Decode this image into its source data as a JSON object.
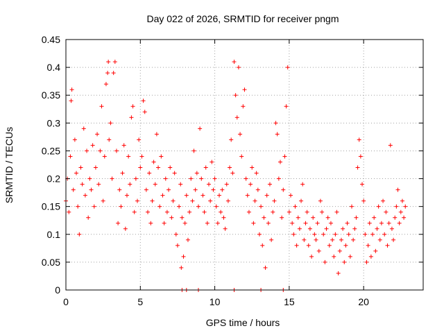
{
  "chart_data": {
    "type": "scatter",
    "title": "Day 022 of 2026, SRMTID for receiver pngm",
    "xlabel": "GPS time / hours",
    "ylabel": "SRMTID / TECUs",
    "xlim": [
      0,
      24
    ],
    "ylim": [
      0,
      0.45
    ],
    "xticks": [
      "0",
      "5",
      "10",
      "15",
      "20"
    ],
    "yticks": [
      "0",
      "0.05",
      "0.1",
      "0.15",
      "0.2",
      "0.25",
      "0.3",
      "0.35",
      "0.4",
      "0.45"
    ],
    "grid": true,
    "marker": "+",
    "color": "#ff0000",
    "series": [
      {
        "name": "SRMTID",
        "points": [
          [
            0.0,
            0.16
          ],
          [
            0.1,
            0.2
          ],
          [
            0.2,
            0.14
          ],
          [
            0.3,
            0.24
          ],
          [
            0.35,
            0.34
          ],
          [
            0.4,
            0.36
          ],
          [
            0.5,
            0.18
          ],
          [
            0.6,
            0.27
          ],
          [
            0.7,
            0.21
          ],
          [
            0.8,
            0.15
          ],
          [
            0.9,
            0.1
          ],
          [
            1.0,
            0.22
          ],
          [
            1.1,
            0.19
          ],
          [
            1.2,
            0.29
          ],
          [
            1.3,
            0.17
          ],
          [
            1.4,
            0.25
          ],
          [
            1.5,
            0.13
          ],
          [
            1.6,
            0.2
          ],
          [
            1.7,
            0.18
          ],
          [
            1.8,
            0.26
          ],
          [
            1.9,
            0.15
          ],
          [
            2.0,
            0.22
          ],
          [
            2.1,
            0.28
          ],
          [
            2.2,
            0.19
          ],
          [
            2.3,
            0.25
          ],
          [
            2.4,
            0.33
          ],
          [
            2.5,
            0.16
          ],
          [
            2.6,
            0.24
          ],
          [
            2.7,
            0.37
          ],
          [
            2.8,
            0.39
          ],
          [
            2.85,
            0.41
          ],
          [
            2.9,
            0.27
          ],
          [
            3.0,
            0.3
          ],
          [
            3.1,
            0.2
          ],
          [
            3.2,
            0.39
          ],
          [
            3.3,
            0.41
          ],
          [
            3.4,
            0.25
          ],
          [
            3.5,
            0.12
          ],
          [
            3.6,
            0.18
          ],
          [
            3.7,
            0.15
          ],
          [
            3.8,
            0.21
          ],
          [
            3.9,
            0.26
          ],
          [
            4.0,
            0.11
          ],
          [
            4.1,
            0.17
          ],
          [
            4.2,
            0.24
          ],
          [
            4.3,
            0.19
          ],
          [
            4.4,
            0.31
          ],
          [
            4.5,
            0.33
          ],
          [
            4.6,
            0.14
          ],
          [
            4.7,
            0.2
          ],
          [
            4.8,
            0.16
          ],
          [
            4.9,
            0.27
          ],
          [
            5.0,
            0.22
          ],
          [
            5.1,
            0.24
          ],
          [
            5.2,
            0.34
          ],
          [
            5.3,
            0.32
          ],
          [
            5.4,
            0.18
          ],
          [
            5.5,
            0.14
          ],
          [
            5.6,
            0.21
          ],
          [
            5.7,
            0.12
          ],
          [
            5.8,
            0.16
          ],
          [
            5.9,
            0.23
          ],
          [
            6.0,
            0.19
          ],
          [
            6.1,
            0.28
          ],
          [
            6.2,
            0.22
          ],
          [
            6.3,
            0.15
          ],
          [
            6.4,
            0.24
          ],
          [
            6.5,
            0.17
          ],
          [
            6.6,
            0.12
          ],
          [
            6.7,
            0.2
          ],
          [
            6.8,
            0.14
          ],
          [
            6.9,
            0.18
          ],
          [
            7.0,
            0.22
          ],
          [
            7.1,
            0.13
          ],
          [
            7.2,
            0.16
          ],
          [
            7.3,
            0.21
          ],
          [
            7.4,
            0.1
          ],
          [
            7.5,
            0.08
          ],
          [
            7.6,
            0.15
          ],
          [
            7.7,
            0.19
          ],
          [
            7.75,
            0.04
          ],
          [
            7.8,
            0.13
          ],
          [
            7.9,
            0.06
          ],
          [
            8.0,
            0.12
          ],
          [
            8.1,
            0.17
          ],
          [
            8.2,
            0.09
          ],
          [
            8.3,
            0.14
          ],
          [
            8.4,
            0.2
          ],
          [
            8.5,
            0.16
          ],
          [
            8.6,
            0.25
          ],
          [
            8.7,
            0.18
          ],
          [
            8.8,
            0.21
          ],
          [
            8.9,
            0.15
          ],
          [
            9.0,
            0.29
          ],
          [
            9.1,
            0.2
          ],
          [
            9.2,
            0.17
          ],
          [
            9.3,
            0.14
          ],
          [
            9.4,
            0.22
          ],
          [
            9.5,
            0.12
          ],
          [
            9.6,
            0.19
          ],
          [
            9.7,
            0.16
          ],
          [
            9.8,
            0.23
          ],
          [
            9.9,
            0.18
          ],
          [
            10.0,
            0.2
          ],
          [
            10.1,
            0.15
          ],
          [
            10.2,
            0.12
          ],
          [
            10.3,
            0.17
          ],
          [
            10.4,
            0.14
          ],
          [
            10.5,
            0.18
          ],
          [
            10.6,
            0.13
          ],
          [
            10.7,
            0.11
          ],
          [
            10.8,
            0.19
          ],
          [
            10.9,
            0.16
          ],
          [
            11.0,
            0.22
          ],
          [
            11.1,
            0.27
          ],
          [
            11.2,
            0.21
          ],
          [
            11.3,
            0.41
          ],
          [
            11.4,
            0.35
          ],
          [
            11.5,
            0.31
          ],
          [
            11.6,
            0.4
          ],
          [
            11.7,
            0.28
          ],
          [
            11.8,
            0.24
          ],
          [
            11.9,
            0.33
          ],
          [
            12.0,
            0.36
          ],
          [
            12.1,
            0.2
          ],
          [
            12.2,
            0.17
          ],
          [
            12.3,
            0.14
          ],
          [
            12.4,
            0.19
          ],
          [
            12.5,
            0.22
          ],
          [
            12.6,
            0.12
          ],
          [
            12.7,
            0.16
          ],
          [
            12.8,
            0.21
          ],
          [
            12.9,
            0.18
          ],
          [
            13.0,
            0.1
          ],
          [
            13.1,
            0.15
          ],
          [
            13.2,
            0.08
          ],
          [
            13.3,
            0.13
          ],
          [
            13.4,
            0.04
          ],
          [
            13.5,
            0.17
          ],
          [
            13.6,
            0.12
          ],
          [
            13.7,
            0.19
          ],
          [
            13.8,
            0.09
          ],
          [
            13.9,
            0.14
          ],
          [
            14.0,
            0.16
          ],
          [
            14.1,
            0.3
          ],
          [
            14.2,
            0.28
          ],
          [
            14.3,
            0.2
          ],
          [
            14.4,
            0.23
          ],
          [
            14.5,
            0.13
          ],
          [
            14.6,
            0.18
          ],
          [
            14.7,
            0.24
          ],
          [
            14.8,
            0.33
          ],
          [
            14.9,
            0.4
          ],
          [
            15.0,
            0.14
          ],
          [
            15.1,
            0.17
          ],
          [
            15.2,
            0.12
          ],
          [
            15.3,
            0.1
          ],
          [
            15.4,
            0.15
          ],
          [
            15.5,
            0.08
          ],
          [
            15.6,
            0.13
          ],
          [
            15.7,
            0.11
          ],
          [
            15.8,
            0.16
          ],
          [
            15.9,
            0.19
          ],
          [
            16.0,
            0.09
          ],
          [
            16.1,
            0.12
          ],
          [
            16.2,
            0.14
          ],
          [
            16.3,
            0.08
          ],
          [
            16.4,
            0.11
          ],
          [
            16.5,
            0.06
          ],
          [
            16.6,
            0.13
          ],
          [
            16.7,
            0.1
          ],
          [
            16.8,
            0.09
          ],
          [
            16.9,
            0.12
          ],
          [
            17.0,
            0.07
          ],
          [
            17.1,
            0.16
          ],
          [
            17.2,
            0.14
          ],
          [
            17.3,
            0.1
          ],
          [
            17.4,
            0.05
          ],
          [
            17.5,
            0.11
          ],
          [
            17.6,
            0.13
          ],
          [
            17.7,
            0.08
          ],
          [
            17.8,
            0.12
          ],
          [
            17.9,
            0.09
          ],
          [
            18.0,
            0.06
          ],
          [
            18.1,
            0.1
          ],
          [
            18.2,
            0.14
          ],
          [
            18.3,
            0.03
          ],
          [
            18.4,
            0.07
          ],
          [
            18.5,
            0.09
          ],
          [
            18.6,
            0.11
          ],
          [
            18.7,
            0.05
          ],
          [
            18.8,
            0.08
          ],
          [
            18.9,
            0.12
          ],
          [
            19.0,
            0.1
          ],
          [
            19.1,
            0.06
          ],
          [
            19.2,
            0.15
          ],
          [
            19.3,
            0.09
          ],
          [
            19.4,
            0.11
          ],
          [
            19.5,
            0.13
          ],
          [
            19.6,
            0.22
          ],
          [
            19.7,
            0.27
          ],
          [
            19.8,
            0.24
          ],
          [
            19.9,
            0.19
          ],
          [
            20.0,
            0.16
          ],
          [
            20.1,
            0.1
          ],
          [
            20.2,
            0.05
          ],
          [
            20.3,
            0.08
          ],
          [
            20.4,
            0.12
          ],
          [
            20.5,
            0.06
          ],
          [
            20.6,
            0.1
          ],
          [
            20.7,
            0.13
          ],
          [
            20.8,
            0.07
          ],
          [
            20.9,
            0.11
          ],
          [
            21.0,
            0.15
          ],
          [
            21.1,
            0.09
          ],
          [
            21.2,
            0.12
          ],
          [
            21.3,
            0.16
          ],
          [
            21.4,
            0.1
          ],
          [
            21.5,
            0.14
          ],
          [
            21.6,
            0.08
          ],
          [
            21.7,
            0.12
          ],
          [
            21.8,
            0.26
          ],
          [
            21.9,
            0.11
          ],
          [
            22.0,
            0.09
          ],
          [
            22.1,
            0.13
          ],
          [
            22.2,
            0.15
          ],
          [
            22.3,
            0.18
          ],
          [
            22.4,
            0.12
          ],
          [
            22.5,
            0.14
          ],
          [
            22.6,
            0.16
          ],
          [
            22.7,
            0.13
          ],
          [
            22.8,
            0.15
          ],
          [
            7.8,
            0.0
          ],
          [
            8.1,
            0.0
          ],
          [
            8.9,
            0.0
          ],
          [
            11.3,
            0.0
          ],
          [
            13.1,
            0.0
          ],
          [
            14.6,
            0.0
          ]
        ]
      }
    ]
  }
}
